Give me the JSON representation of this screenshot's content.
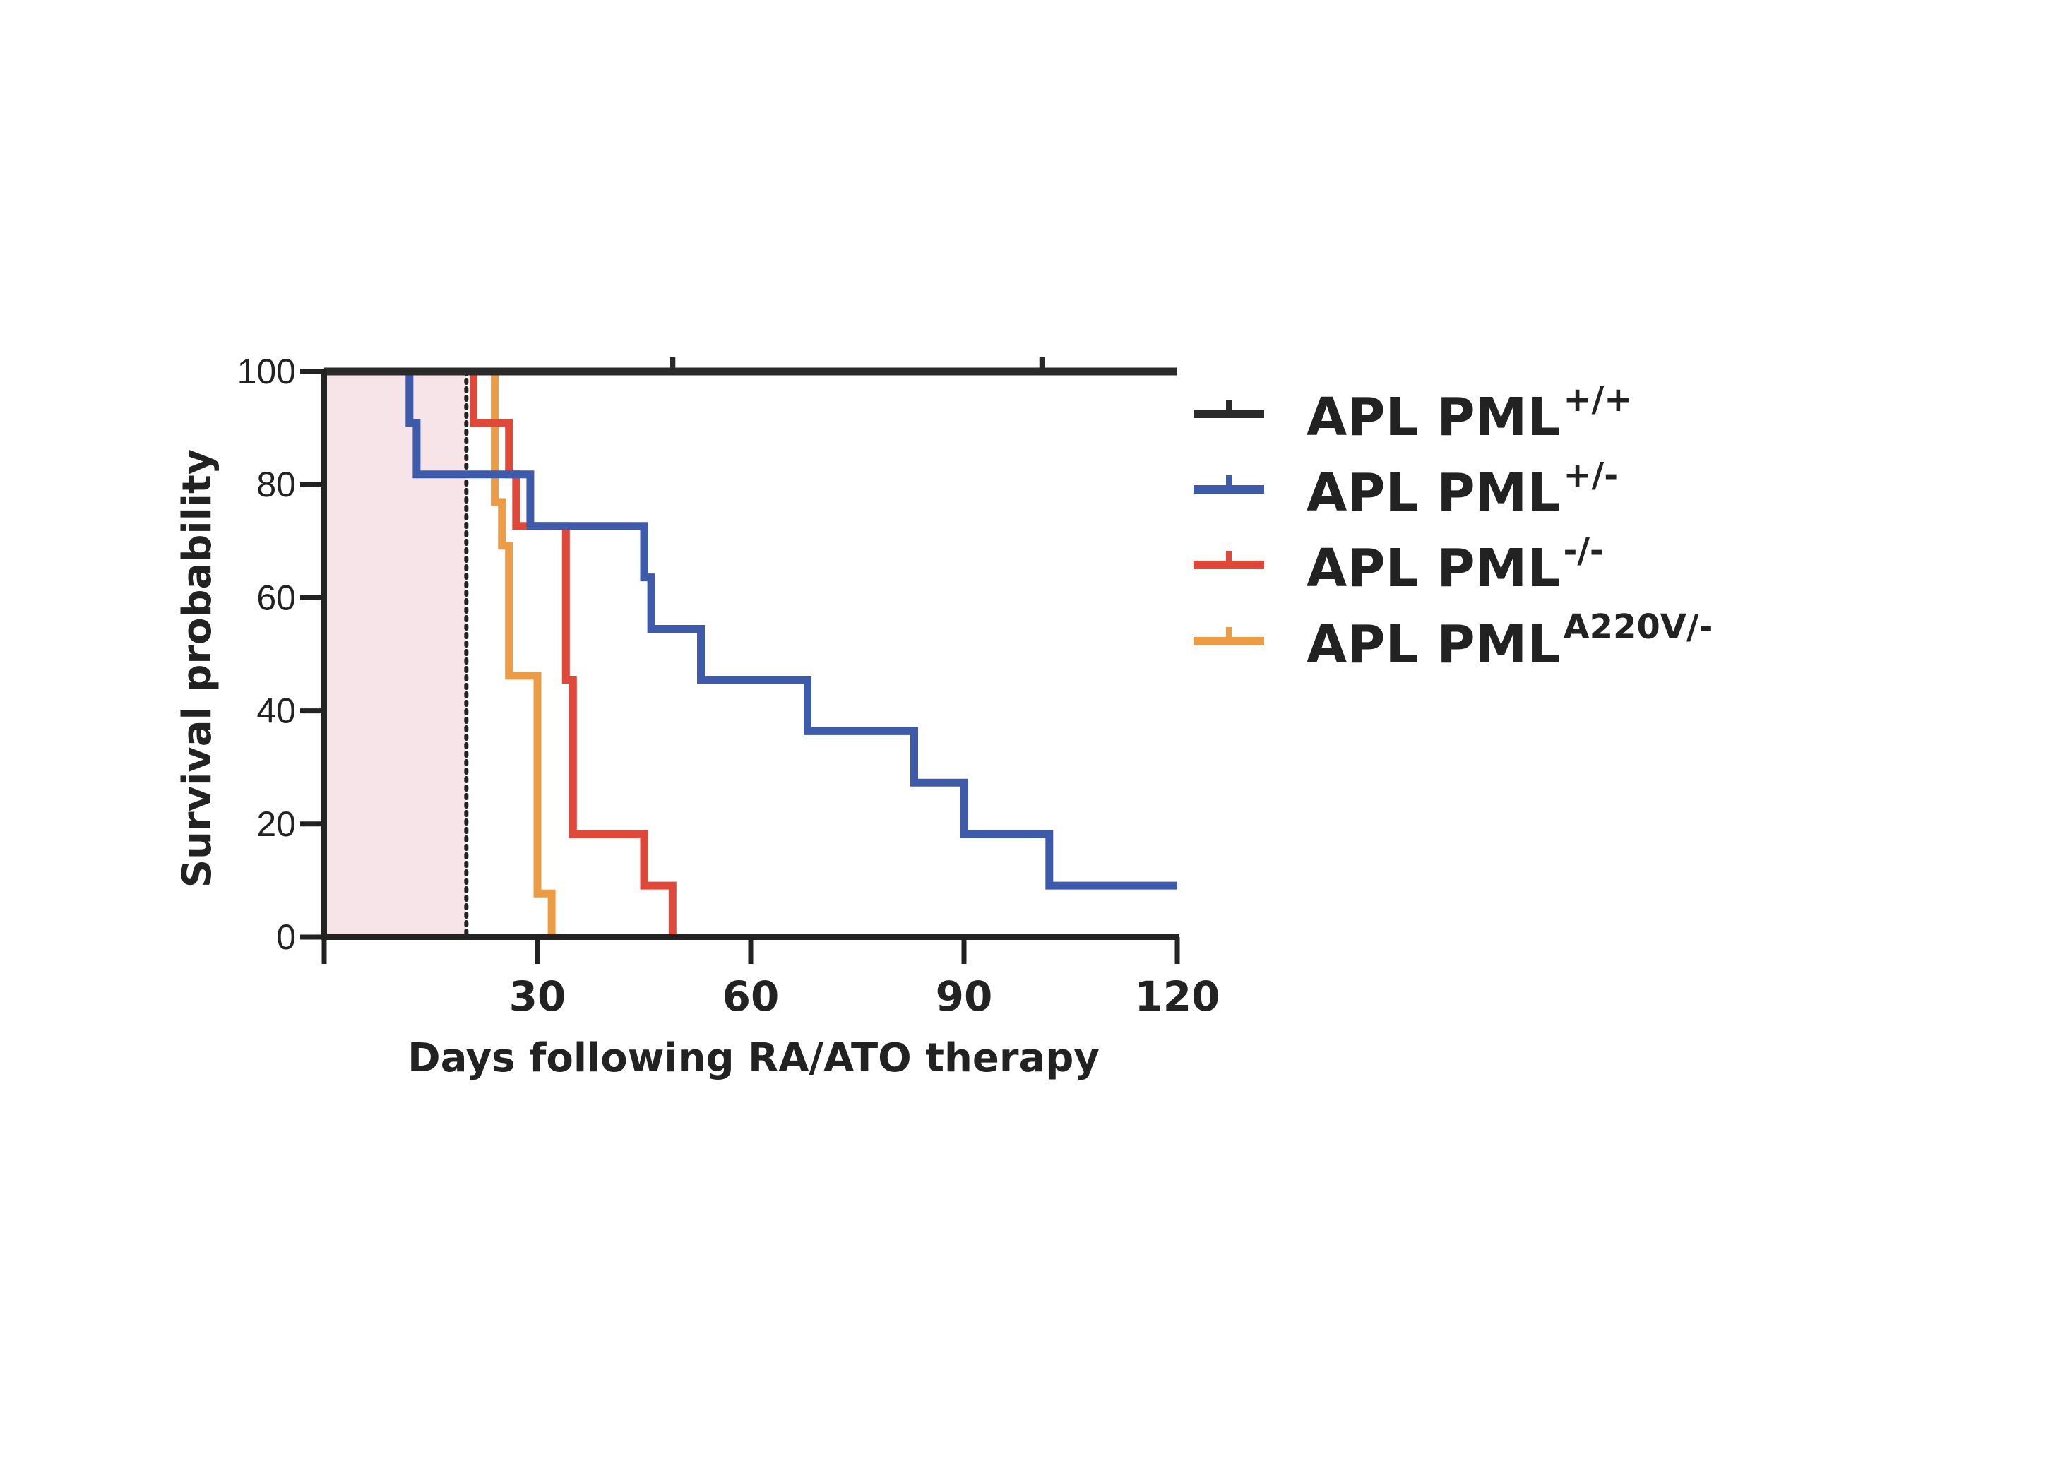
{
  "chart_data": {
    "type": "line",
    "subtype": "kaplan-meier-survival",
    "title": "",
    "xlabel": "Days following RA/ATO therapy",
    "ylabel": "Survival probability",
    "xlim": [
      0,
      120
    ],
    "ylim": [
      0,
      100
    ],
    "xticks": [
      30,
      60,
      90,
      120
    ],
    "yticks": [
      0,
      20,
      40,
      60,
      80,
      100
    ],
    "treatment_window": {
      "x_start": 0,
      "x_end": 20,
      "color": "#f7e4e8"
    },
    "reference_line_x": 20,
    "legend_position": "right",
    "series": [
      {
        "name": "APL PML",
        "superscript": "+/+",
        "color": "#2a2a2a",
        "points": [
          [
            0,
            100
          ],
          [
            120,
            100
          ]
        ],
        "censor_marks": [
          [
            49,
            100
          ],
          [
            101,
            100
          ]
        ]
      },
      {
        "name": "APL PML",
        "superscript": "+/-",
        "color": "#3e5bab",
        "points": [
          [
            12,
            100
          ],
          [
            12,
            90.9
          ],
          [
            13,
            90.9
          ],
          [
            13,
            81.8
          ],
          [
            29,
            81.8
          ],
          [
            29,
            72.7
          ],
          [
            45,
            72.7
          ],
          [
            45,
            63.6
          ],
          [
            46,
            63.6
          ],
          [
            46,
            54.5
          ],
          [
            53,
            54.5
          ],
          [
            53,
            45.5
          ],
          [
            68,
            45.5
          ],
          [
            68,
            36.4
          ],
          [
            83,
            36.4
          ],
          [
            83,
            27.3
          ],
          [
            90,
            27.3
          ],
          [
            90,
            18.2
          ],
          [
            102,
            18.2
          ],
          [
            102,
            9.1
          ],
          [
            120,
            9.1
          ]
        ],
        "censor_marks": []
      },
      {
        "name": "APL PML",
        "superscript": "-/-",
        "color": "#e0483a",
        "points": [
          [
            21,
            100
          ],
          [
            21,
            90.9
          ],
          [
            26,
            90.9
          ],
          [
            26,
            81.8
          ],
          [
            27,
            81.8
          ],
          [
            27,
            72.7
          ],
          [
            34,
            72.7
          ],
          [
            34,
            45.5
          ],
          [
            35,
            45.5
          ],
          [
            35,
            18.2
          ],
          [
            45,
            18.2
          ],
          [
            45,
            9.1
          ],
          [
            49,
            9.1
          ],
          [
            49,
            0
          ]
        ],
        "censor_marks": []
      },
      {
        "name": "APL PML",
        "superscript": "A220V/-",
        "color": "#eb9c45",
        "points": [
          [
            24,
            100
          ],
          [
            24,
            76.9
          ],
          [
            25,
            76.9
          ],
          [
            25,
            69.2
          ],
          [
            26,
            69.2
          ],
          [
            26,
            46.2
          ],
          [
            30,
            46.2
          ],
          [
            30,
            7.7
          ],
          [
            32,
            7.7
          ],
          [
            32,
            0
          ]
        ],
        "censor_marks": []
      }
    ]
  }
}
